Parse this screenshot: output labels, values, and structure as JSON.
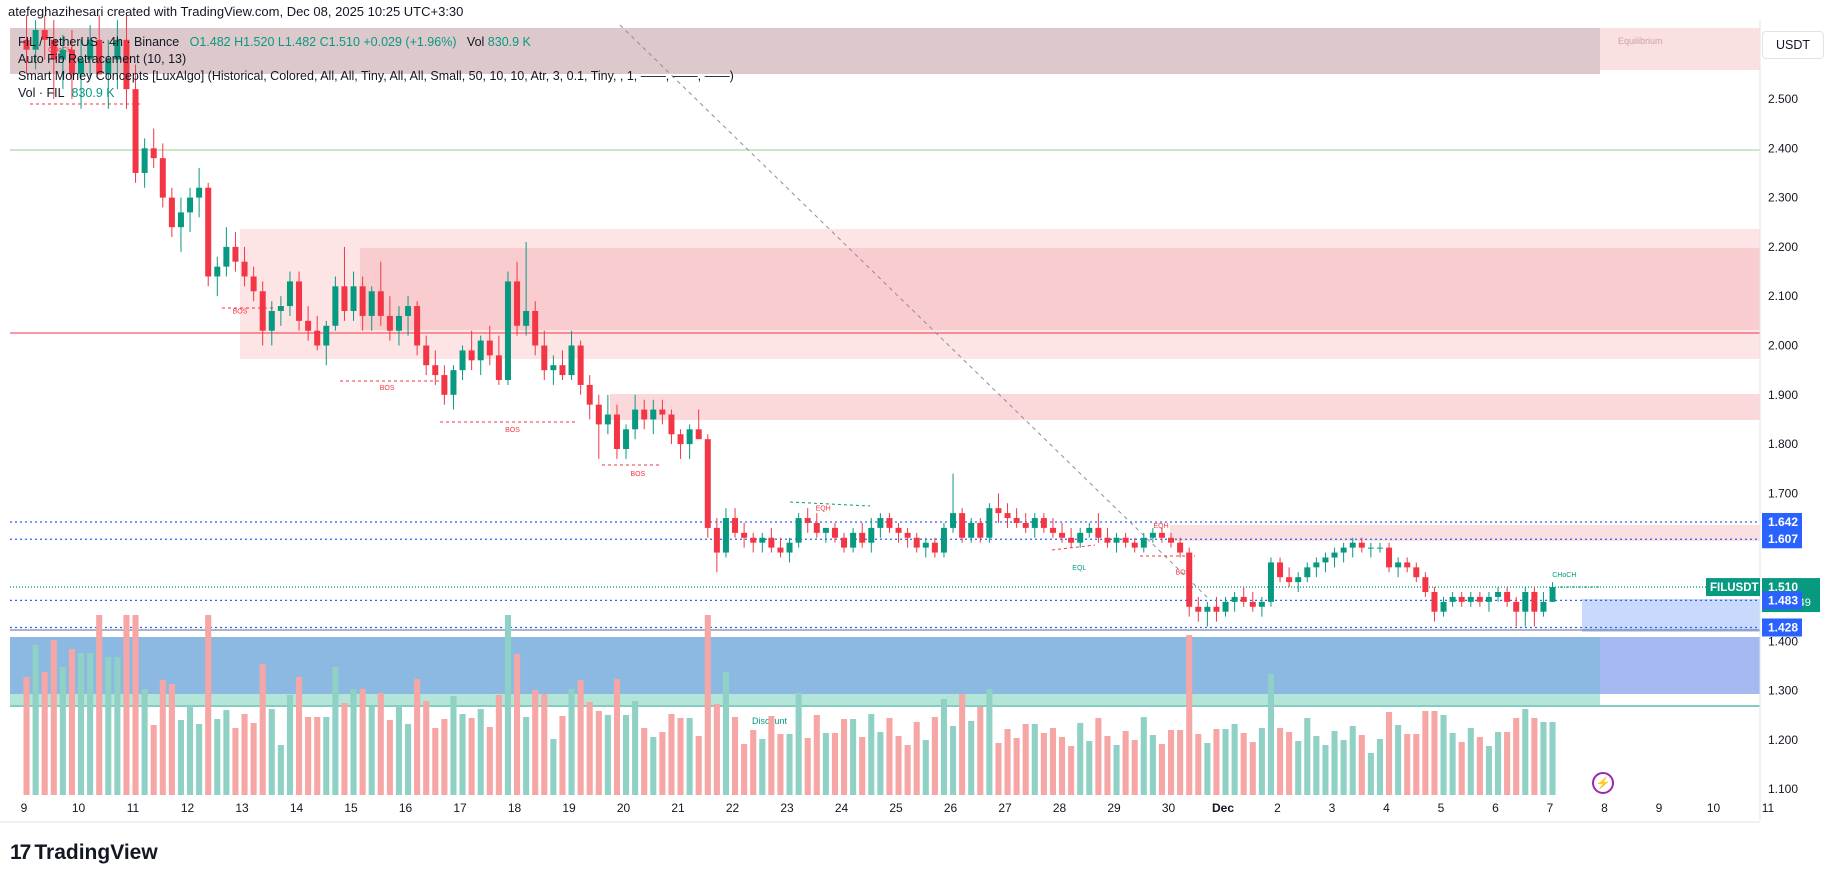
{
  "header": {
    "title": "atefeghazihesari created with TradingView.com, Dec 08, 2025 10:25 UTC+3:30"
  },
  "legend": {
    "symbol": "FIL / TetherUS · 4h · Binance",
    "ohlc": "O1.482  H1.520  L1.482  C1.510  +0.029 (+1.96%)",
    "vol_label": "Vol",
    "vol_value": "830.9 K",
    "indicator_fib": "Auto Fib Retracement (10, 13)",
    "indicator_smc": "Smart Money Concepts [LuxAlgo] (Historical, Colored, All, All, Tiny, All, All, Small, 50, 10, 10, Atr, 3, 0.1, Tiny, , 1, ——, ——, ——)",
    "vol_fil_label": "Vol · FIL",
    "vol_fil_value": "830.9 K"
  },
  "currency": "USDT",
  "logo": {
    "mark": "17",
    "text": "TradingView"
  },
  "colors": {
    "up": "#089981",
    "down": "#f23645",
    "up_vol": "#8fd1c4",
    "down_vol": "#f7a6a6",
    "premium_zone": "#f8c7c9",
    "discount_zone": "#5b9bd5",
    "fib_blue": "#2962ff",
    "price_badge": "#089981",
    "flash_icon": "#9c27b0"
  },
  "chart_data": {
    "type": "candlestick",
    "timeframe": "4h",
    "symbol": "FILUSDT",
    "y_axis": {
      "ylim": [
        1.07,
        2.67
      ],
      "ticks": [
        "2.500",
        "2.400",
        "2.300",
        "2.200",
        "2.100",
        "2.000",
        "1.900",
        "1.800",
        "1.700",
        "1.600",
        "1.500",
        "1.400",
        "1.300",
        "1.200",
        "1.100"
      ],
      "tick_values": [
        2.5,
        2.4,
        2.3,
        2.2,
        2.1,
        2.0,
        1.9,
        1.8,
        1.7,
        1.6,
        1.5,
        1.4,
        1.3,
        1.2,
        1.1
      ]
    },
    "x_axis": {
      "ticks": [
        "9",
        "10",
        "11",
        "12",
        "13",
        "14",
        "15",
        "16",
        "17",
        "18",
        "19",
        "20",
        "21",
        "22",
        "23",
        "24",
        "25",
        "26",
        "27",
        "28",
        "29",
        "30",
        "Dec",
        "2",
        "3",
        "4",
        "5",
        "6",
        "7",
        "8",
        "9",
        "10",
        "11"
      ],
      "bold": [
        "Dec"
      ]
    },
    "price_labels": [
      {
        "text": "1.642",
        "value": 1.642,
        "kind": "fib"
      },
      {
        "text": "1.607",
        "value": 1.607,
        "kind": "fib"
      },
      {
        "text": "1.510",
        "value": 1.51,
        "kind": "last",
        "symbol": "FILUSDT",
        "countdown": "01:04:49"
      },
      {
        "text": "1.483",
        "value": 1.483,
        "kind": "fib"
      },
      {
        "text": "1.428",
        "value": 1.428,
        "kind": "fib"
      }
    ],
    "zone_labels": {
      "equilibrium": "Equilibrium",
      "discount": "Discount"
    },
    "structure_labels": [
      {
        "text": "CHoCH",
        "d": 0.7,
        "y": 2.595
      },
      {
        "text": "BOS",
        "d": 4.0,
        "y": 2.065
      },
      {
        "text": "BOS",
        "d": 6.7,
        "y": 1.91
      },
      {
        "text": "BOS",
        "d": 9.0,
        "y": 1.825
      },
      {
        "text": "BOS",
        "d": 11.3,
        "y": 1.735
      },
      {
        "text": "EQH",
        "d": 14.7,
        "y": 1.665
      },
      {
        "text": "EQL",
        "d": 19.4,
        "y": 1.545
      },
      {
        "text": "EQH",
        "d": 20.9,
        "y": 1.63
      },
      {
        "text": "BOS",
        "d": 21.3,
        "y": 1.535
      },
      {
        "text": "CHoCH",
        "d": 28.3,
        "y": 1.53
      }
    ],
    "candles_4h": [
      [
        2.62,
        2.67,
        2.55,
        2.6
      ],
      [
        2.6,
        2.66,
        2.56,
        2.64
      ],
      [
        2.64,
        2.67,
        2.58,
        2.62
      ],
      [
        2.62,
        2.66,
        2.5,
        2.58
      ],
      [
        2.58,
        2.63,
        2.52,
        2.6
      ],
      [
        2.6,
        2.64,
        2.5,
        2.55
      ],
      [
        2.55,
        2.62,
        2.48,
        2.58
      ],
      [
        2.58,
        2.65,
        2.54,
        2.62
      ],
      [
        2.62,
        2.67,
        2.55,
        2.55
      ],
      [
        2.55,
        2.62,
        2.48,
        2.58
      ],
      [
        2.58,
        2.66,
        2.52,
        2.62
      ],
      [
        2.62,
        2.67,
        2.48,
        2.52
      ],
      [
        2.52,
        2.57,
        2.33,
        2.35
      ],
      [
        2.35,
        2.42,
        2.32,
        2.4
      ],
      [
        2.4,
        2.44,
        2.36,
        2.38
      ],
      [
        2.38,
        2.41,
        2.28,
        2.3
      ],
      [
        2.3,
        2.32,
        2.22,
        2.24
      ],
      [
        2.24,
        2.3,
        2.19,
        2.27
      ],
      [
        2.27,
        2.32,
        2.23,
        2.3
      ],
      [
        2.3,
        2.36,
        2.26,
        2.32
      ],
      [
        2.32,
        2.33,
        2.12,
        2.14
      ],
      [
        2.14,
        2.18,
        2.1,
        2.16
      ],
      [
        2.16,
        2.24,
        2.14,
        2.2
      ],
      [
        2.2,
        2.23,
        2.15,
        2.17
      ],
      [
        2.17,
        2.2,
        2.12,
        2.14
      ],
      [
        2.14,
        2.16,
        2.09,
        2.11
      ],
      [
        2.11,
        2.13,
        2.0,
        2.03
      ],
      [
        2.03,
        2.09,
        2.0,
        2.07
      ],
      [
        2.07,
        2.1,
        2.04,
        2.08
      ],
      [
        2.08,
        2.15,
        2.06,
        2.13
      ],
      [
        2.13,
        2.15,
        2.03,
        2.05
      ],
      [
        2.05,
        2.08,
        2.01,
        2.03
      ],
      [
        2.03,
        2.06,
        1.99,
        2.0
      ],
      [
        2.0,
        2.05,
        1.96,
        2.04
      ],
      [
        2.04,
        2.14,
        2.03,
        2.12
      ],
      [
        2.12,
        2.2,
        2.05,
        2.07
      ],
      [
        2.07,
        2.15,
        2.05,
        2.12
      ],
      [
        2.12,
        2.14,
        2.03,
        2.06
      ],
      [
        2.06,
        2.12,
        2.03,
        2.11
      ],
      [
        2.11,
        2.17,
        2.04,
        2.06
      ],
      [
        2.06,
        2.1,
        2.01,
        2.03
      ],
      [
        2.03,
        2.08,
        2.0,
        2.06
      ],
      [
        2.06,
        2.1,
        2.02,
        2.08
      ],
      [
        2.08,
        2.09,
        1.98,
        2.0
      ],
      [
        2.0,
        2.02,
        1.94,
        1.96
      ],
      [
        1.96,
        1.99,
        1.92,
        1.94
      ],
      [
        1.94,
        1.96,
        1.88,
        1.9
      ],
      [
        1.9,
        1.96,
        1.87,
        1.95
      ],
      [
        1.95,
        2.0,
        1.93,
        1.99
      ],
      [
        1.99,
        2.03,
        1.95,
        1.97
      ],
      [
        1.97,
        2.02,
        1.94,
        2.01
      ],
      [
        2.01,
        2.04,
        1.96,
        1.98
      ],
      [
        1.98,
        2.02,
        1.92,
        1.93
      ],
      [
        1.93,
        2.15,
        1.92,
        2.13
      ],
      [
        2.13,
        2.17,
        2.02,
        2.04
      ],
      [
        2.04,
        2.21,
        2.02,
        2.07
      ],
      [
        2.07,
        2.09,
        1.98,
        2.0
      ],
      [
        2.0,
        2.03,
        1.93,
        1.95
      ],
      [
        1.95,
        1.98,
        1.92,
        1.96
      ],
      [
        1.96,
        1.99,
        1.93,
        1.94
      ],
      [
        1.94,
        2.03,
        1.93,
        2.0
      ],
      [
        2.0,
        2.01,
        1.9,
        1.92
      ],
      [
        1.92,
        1.94,
        1.85,
        1.88
      ],
      [
        1.88,
        1.9,
        1.77,
        1.84
      ],
      [
        1.84,
        1.9,
        1.82,
        1.86
      ],
      [
        1.86,
        1.88,
        1.77,
        1.79
      ],
      [
        1.79,
        1.84,
        1.77,
        1.83
      ],
      [
        1.83,
        1.9,
        1.81,
        1.87
      ],
      [
        1.87,
        1.89,
        1.83,
        1.85
      ],
      [
        1.85,
        1.89,
        1.82,
        1.87
      ],
      [
        1.87,
        1.89,
        1.84,
        1.86
      ],
      [
        1.86,
        1.87,
        1.8,
        1.82
      ],
      [
        1.82,
        1.83,
        1.77,
        1.8
      ],
      [
        1.8,
        1.84,
        1.77,
        1.83
      ],
      [
        1.83,
        1.87,
        1.81,
        1.81
      ],
      [
        1.81,
        1.82,
        1.61,
        1.63
      ],
      [
        1.63,
        1.65,
        1.54,
        1.58
      ],
      [
        1.58,
        1.67,
        1.57,
        1.65
      ],
      [
        1.65,
        1.67,
        1.61,
        1.62
      ],
      [
        1.62,
        1.64,
        1.59,
        1.61
      ],
      [
        1.61,
        1.62,
        1.58,
        1.6
      ],
      [
        1.6,
        1.62,
        1.58,
        1.61
      ],
      [
        1.61,
        1.63,
        1.58,
        1.59
      ],
      [
        1.59,
        1.61,
        1.57,
        1.58
      ],
      [
        1.58,
        1.61,
        1.56,
        1.6
      ],
      [
        1.6,
        1.66,
        1.59,
        1.65
      ],
      [
        1.65,
        1.67,
        1.62,
        1.64
      ],
      [
        1.64,
        1.66,
        1.61,
        1.62
      ],
      [
        1.62,
        1.63,
        1.6,
        1.63
      ],
      [
        1.63,
        1.64,
        1.6,
        1.61
      ],
      [
        1.61,
        1.62,
        1.58,
        1.59
      ],
      [
        1.59,
        1.63,
        1.58,
        1.62
      ],
      [
        1.62,
        1.64,
        1.59,
        1.6
      ],
      [
        1.6,
        1.65,
        1.58,
        1.63
      ],
      [
        1.63,
        1.66,
        1.61,
        1.65
      ],
      [
        1.65,
        1.66,
        1.62,
        1.63
      ],
      [
        1.63,
        1.64,
        1.6,
        1.62
      ],
      [
        1.62,
        1.63,
        1.59,
        1.61
      ],
      [
        1.61,
        1.62,
        1.58,
        1.59
      ],
      [
        1.59,
        1.61,
        1.57,
        1.6
      ],
      [
        1.6,
        1.61,
        1.57,
        1.58
      ],
      [
        1.58,
        1.64,
        1.57,
        1.63
      ],
      [
        1.63,
        1.74,
        1.62,
        1.66
      ],
      [
        1.66,
        1.67,
        1.6,
        1.61
      ],
      [
        1.61,
        1.65,
        1.6,
        1.64
      ],
      [
        1.64,
        1.65,
        1.6,
        1.61
      ],
      [
        1.61,
        1.68,
        1.6,
        1.67
      ],
      [
        1.67,
        1.7,
        1.64,
        1.66
      ],
      [
        1.66,
        1.68,
        1.63,
        1.65
      ],
      [
        1.65,
        1.67,
        1.63,
        1.64
      ],
      [
        1.64,
        1.66,
        1.62,
        1.63
      ],
      [
        1.63,
        1.66,
        1.61,
        1.65
      ],
      [
        1.65,
        1.66,
        1.62,
        1.63
      ],
      [
        1.63,
        1.65,
        1.61,
        1.62
      ],
      [
        1.62,
        1.64,
        1.6,
        1.61
      ],
      [
        1.61,
        1.63,
        1.59,
        1.6
      ],
      [
        1.6,
        1.63,
        1.59,
        1.62
      ],
      [
        1.62,
        1.64,
        1.61,
        1.63
      ],
      [
        1.63,
        1.66,
        1.6,
        1.61
      ],
      [
        1.61,
        1.63,
        1.59,
        1.6
      ],
      [
        1.6,
        1.62,
        1.58,
        1.61
      ],
      [
        1.61,
        1.62,
        1.59,
        1.6
      ],
      [
        1.6,
        1.61,
        1.58,
        1.59
      ],
      [
        1.59,
        1.62,
        1.58,
        1.61
      ],
      [
        1.61,
        1.63,
        1.6,
        1.62
      ],
      [
        1.62,
        1.63,
        1.6,
        1.61
      ],
      [
        1.61,
        1.62,
        1.59,
        1.6
      ],
      [
        1.6,
        1.61,
        1.57,
        1.58
      ],
      [
        1.58,
        1.59,
        1.45,
        1.47
      ],
      [
        1.47,
        1.49,
        1.44,
        1.46
      ],
      [
        1.46,
        1.48,
        1.43,
        1.47
      ],
      [
        1.47,
        1.49,
        1.44,
        1.46
      ],
      [
        1.46,
        1.49,
        1.45,
        1.48
      ],
      [
        1.48,
        1.5,
        1.46,
        1.49
      ],
      [
        1.49,
        1.51,
        1.47,
        1.48
      ],
      [
        1.48,
        1.5,
        1.46,
        1.47
      ],
      [
        1.47,
        1.49,
        1.45,
        1.48
      ],
      [
        1.48,
        1.57,
        1.47,
        1.56
      ],
      [
        1.56,
        1.57,
        1.52,
        1.53
      ],
      [
        1.53,
        1.55,
        1.51,
        1.52
      ],
      [
        1.52,
        1.54,
        1.5,
        1.53
      ],
      [
        1.53,
        1.56,
        1.52,
        1.55
      ],
      [
        1.55,
        1.57,
        1.53,
        1.56
      ],
      [
        1.56,
        1.58,
        1.54,
        1.57
      ],
      [
        1.57,
        1.59,
        1.55,
        1.58
      ],
      [
        1.58,
        1.6,
        1.56,
        1.59
      ],
      [
        1.59,
        1.61,
        1.57,
        1.6
      ],
      [
        1.6,
        1.61,
        1.58,
        1.59
      ],
      [
        1.59,
        1.6,
        1.57,
        1.59
      ],
      [
        1.59,
        1.6,
        1.58,
        1.59
      ],
      [
        1.59,
        1.6,
        1.54,
        1.55
      ],
      [
        1.55,
        1.57,
        1.53,
        1.56
      ],
      [
        1.56,
        1.57,
        1.54,
        1.55
      ],
      [
        1.55,
        1.56,
        1.52,
        1.53
      ],
      [
        1.53,
        1.54,
        1.49,
        1.5
      ],
      [
        1.5,
        1.51,
        1.44,
        1.46
      ],
      [
        1.46,
        1.49,
        1.45,
        1.48
      ],
      [
        1.48,
        1.5,
        1.47,
        1.49
      ],
      [
        1.49,
        1.5,
        1.47,
        1.48
      ],
      [
        1.48,
        1.5,
        1.47,
        1.49
      ],
      [
        1.49,
        1.5,
        1.47,
        1.48
      ],
      [
        1.48,
        1.5,
        1.46,
        1.49
      ],
      [
        1.49,
        1.51,
        1.48,
        1.5
      ],
      [
        1.5,
        1.51,
        1.47,
        1.48
      ],
      [
        1.48,
        1.49,
        1.43,
        1.46
      ],
      [
        1.46,
        1.51,
        1.43,
        1.5
      ],
      [
        1.5,
        1.51,
        1.43,
        1.46
      ],
      [
        1.46,
        1.5,
        1.45,
        1.48
      ],
      [
        1.48,
        1.52,
        1.48,
        1.51
      ]
    ]
  }
}
